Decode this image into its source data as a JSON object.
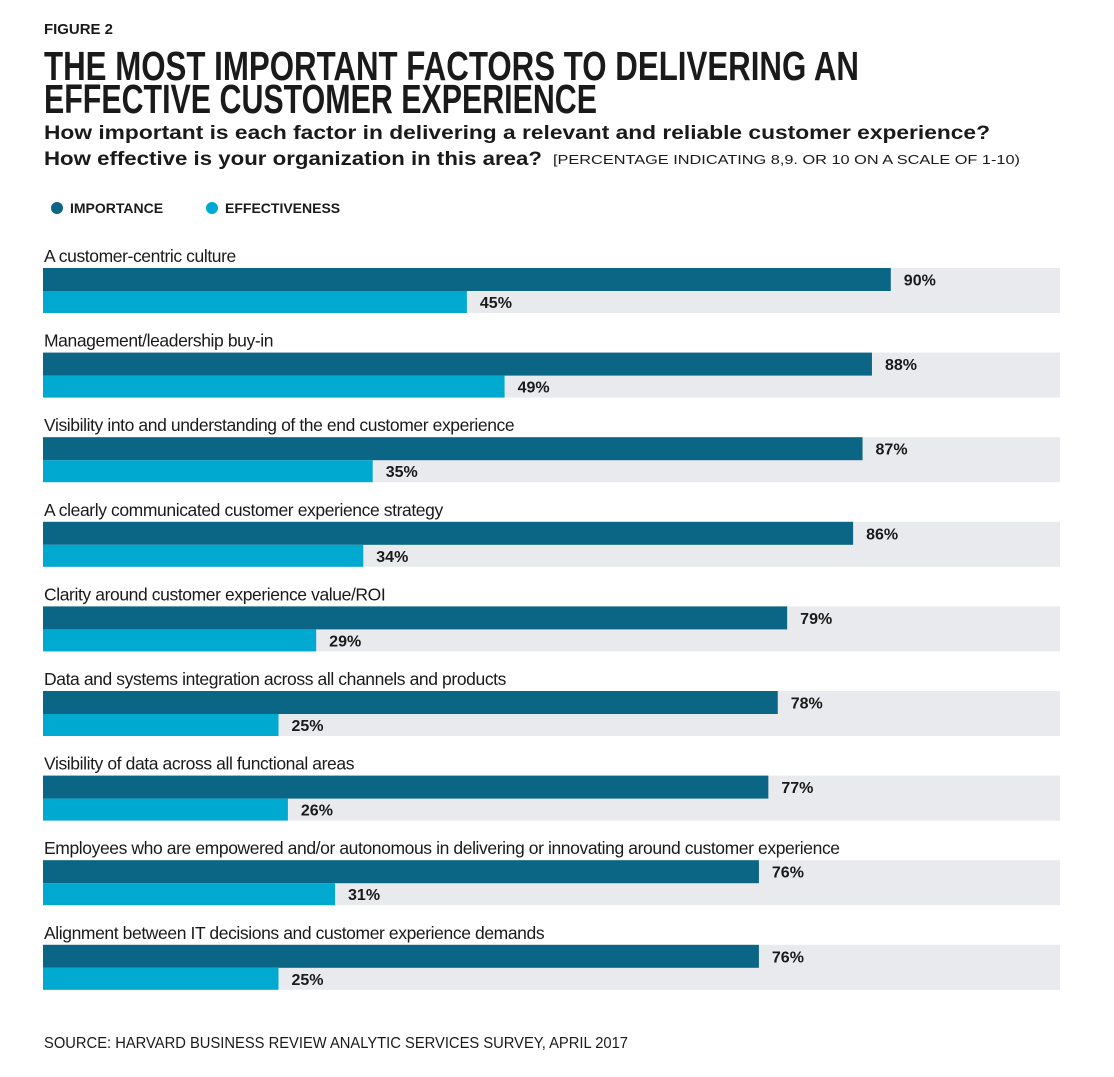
{
  "chart_data": {
    "type": "bar",
    "orientation": "horizontal",
    "figure_label": "FIGURE 2",
    "title": [
      "THE MOST IMPORTANT FACTORS TO DELIVERING AN",
      "EFFECTIVE CUSTOMER EXPERIENCE"
    ],
    "subtitle": [
      "How important is each factor in delivering a relevant and reliable customer experience?",
      "How effective is your organization in this area?"
    ],
    "note": "[PERCENTAGE INDICATING 8,9. OR 10 ON A SCALE OF 1-10)",
    "categories": [
      "A customer-centric culture",
      "Management/leadership buy-in",
      "Visibility into and understanding of the end customer experience",
      "A clearly communicated customer experience strategy",
      "Clarity around customer experience value/ROI",
      "Data and systems integration across all channels and products",
      "Visibility of data across all functional areas",
      "Employees who are empowered and/or autonomous in delivering or innovating around customer experience",
      "Alignment between IT decisions and customer experience demands"
    ],
    "series": [
      {
        "name": "IMPORTANCE",
        "color": "#0b6584",
        "values": [
          90,
          88,
          87,
          86,
          79,
          78,
          77,
          76,
          76
        ],
        "value_labels": [
          "90%",
          "88%",
          "87%",
          "86%",
          "79%",
          "78%",
          "77%",
          "76%",
          "76%"
        ]
      },
      {
        "name": "EFFECTIVENESS",
        "color": "#00a9cf",
        "values": [
          45,
          49,
          35,
          34,
          29,
          25,
          26,
          31,
          25
        ],
        "value_labels": [
          "45%",
          "49%",
          "35%",
          "34%",
          "29%",
          "25%",
          "26%",
          "31%",
          "25%"
        ]
      }
    ],
    "source": "SOURCE: HARVARD BUSINESS REVIEW ANALYTIC SERVICES SURVEY, APRIL 2017"
  }
}
